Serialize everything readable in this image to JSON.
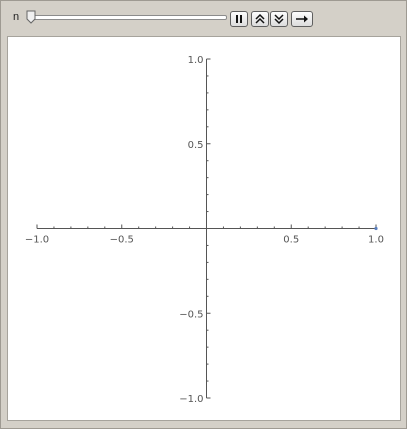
{
  "controls": {
    "variable_label": "n",
    "slider_value_fraction": 0.0,
    "buttons": [
      {
        "name": "pause-button",
        "icon": "pause-icon"
      },
      {
        "name": "faster-button",
        "icon": "double-chevron-up-icon"
      },
      {
        "name": "slower-button",
        "icon": "double-chevron-down-icon"
      },
      {
        "name": "direction-button",
        "icon": "arrow-right-icon"
      }
    ]
  },
  "chart_data": {
    "type": "line",
    "title": "",
    "xlabel": "",
    "ylabel": "",
    "xlim": [
      -1.0,
      1.0
    ],
    "ylim": [
      -1.0,
      1.0
    ],
    "x_ticks": [
      {
        "value": -1.0,
        "label": "−1.0"
      },
      {
        "value": -0.5,
        "label": "−0.5"
      },
      {
        "value": 0.5,
        "label": "0.5"
      },
      {
        "value": 1.0,
        "label": "1.0"
      }
    ],
    "y_ticks": [
      {
        "value": 1.0,
        "label": "1.0"
      },
      {
        "value": 0.5,
        "label": "0.5"
      },
      {
        "value": -0.5,
        "label": "−0.5"
      },
      {
        "value": -1.0,
        "label": "−1.0"
      }
    ],
    "minor_ticks_per_major": 5,
    "grid": false,
    "series": [
      {
        "x": [
          1.0
        ],
        "y": [
          0.0
        ],
        "color": "#5a7fbf"
      }
    ],
    "axis_color": "#555555"
  }
}
